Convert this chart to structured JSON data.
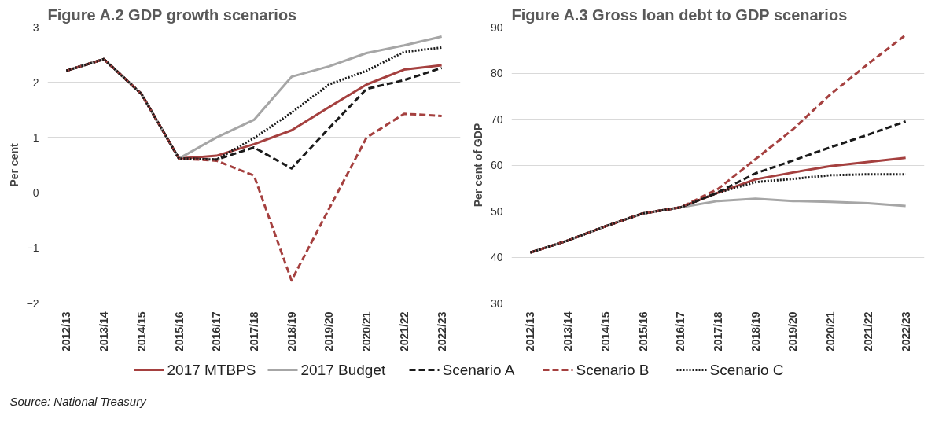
{
  "chart_data": [
    {
      "type": "line",
      "title": "Figure A.2 GDP growth scenarios",
      "ylabel": "Per cent",
      "categories": [
        "2012/13",
        "2013/14",
        "2014/15",
        "2015/16",
        "2016/17",
        "2017/18",
        "2018/19",
        "2019/20",
        "2020/21",
        "2021/22",
        "2022/23"
      ],
      "ylim": [
        -2,
        3
      ],
      "yticks": [
        -2,
        -1,
        0,
        1,
        2,
        3
      ],
      "grid": "y",
      "legend": "bottom",
      "annotations": [
        "Source: National Treasury"
      ],
      "series": [
        {
          "name": "2017 MTBPS",
          "color": "#a5403f",
          "line_style": "solid",
          "values": [
            2.21,
            2.42,
            1.79,
            0.62,
            0.67,
            0.88,
            1.13,
            1.55,
            1.96,
            2.23,
            2.31
          ]
        },
        {
          "name": "2017 Budget",
          "color": "#a6a6a6",
          "line_style": "solid",
          "values": [
            2.21,
            2.42,
            1.79,
            0.62,
            1.0,
            1.32,
            2.1,
            2.29,
            2.53,
            2.67,
            2.83
          ]
        },
        {
          "name": "Scenario A",
          "color": "#1a1a1a",
          "line_style": "dashed",
          "values": [
            2.21,
            2.42,
            1.79,
            0.62,
            0.6,
            0.82,
            0.44,
            1.17,
            1.88,
            2.04,
            2.26
          ]
        },
        {
          "name": "Scenario B",
          "color": "#a5403f",
          "line_style": "dashed",
          "values": [
            2.21,
            2.42,
            1.79,
            0.62,
            0.58,
            0.31,
            -1.59,
            -0.29,
            1.0,
            1.43,
            1.39
          ]
        },
        {
          "name": "Scenario C",
          "color": "#1a1a1a",
          "line_style": "dotted",
          "values": [
            2.21,
            2.42,
            1.79,
            0.62,
            0.6,
            0.99,
            1.45,
            1.96,
            2.21,
            2.55,
            2.63
          ]
        }
      ]
    },
    {
      "type": "line",
      "title": "Figure A.3 Gross loan debt to GDP scenarios",
      "ylabel": "Per cent of GDP",
      "categories": [
        "2012/13",
        "2013/14",
        "2014/15",
        "2015/16",
        "2016/17",
        "2017/18",
        "2018/19",
        "2019/20",
        "2020/21",
        "2021/22",
        "2022/23"
      ],
      "ylim": [
        30,
        90
      ],
      "yticks": [
        30,
        40,
        50,
        60,
        70,
        80,
        90
      ],
      "grid": "y",
      "legend": "bottom",
      "series": [
        {
          "name": "2017 MTBPS",
          "color": "#a5403f",
          "line_style": "solid",
          "values": [
            41.0,
            43.6,
            46.7,
            49.5,
            50.8,
            54.0,
            56.9,
            58.4,
            59.8,
            60.7,
            61.6
          ]
        },
        {
          "name": "2017 Budget",
          "color": "#a6a6a6",
          "line_style": "solid",
          "values": [
            41.0,
            43.6,
            46.7,
            49.5,
            50.8,
            52.2,
            52.7,
            52.2,
            52.0,
            51.7,
            51.1
          ]
        },
        {
          "name": "Scenario A",
          "color": "#1a1a1a",
          "line_style": "dashed",
          "values": [
            41.0,
            43.6,
            46.7,
            49.5,
            50.8,
            54.1,
            58.2,
            61.0,
            63.9,
            66.6,
            69.5
          ]
        },
        {
          "name": "Scenario B",
          "color": "#a5403f",
          "line_style": "dashed",
          "values": [
            41.0,
            43.6,
            46.7,
            49.5,
            50.8,
            54.8,
            61.3,
            67.8,
            75.4,
            82.0,
            88.3
          ]
        },
        {
          "name": "Scenario C",
          "color": "#1a1a1a",
          "line_style": "dotted",
          "values": [
            41.0,
            43.6,
            46.7,
            49.5,
            50.8,
            54.0,
            56.3,
            57.0,
            57.8,
            58.0,
            58.0
          ]
        }
      ]
    }
  ]
}
